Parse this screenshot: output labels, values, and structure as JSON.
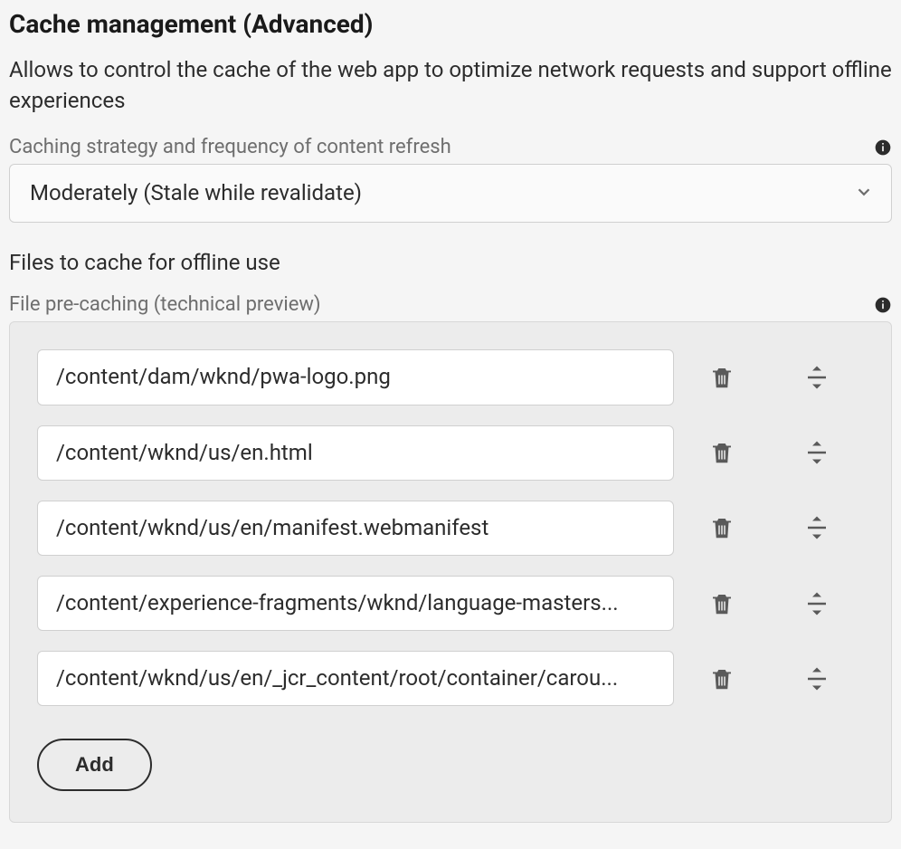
{
  "title": "Cache management (Advanced)",
  "description": "Allows to control the cache of the web app to optimize network requests and support offline experiences",
  "strategy": {
    "label": "Caching strategy and frequency of content refresh",
    "selected": "Moderately (Stale while revalidate)"
  },
  "files_section": {
    "heading": "Files to cache for offline use",
    "label": "File pre-caching (technical preview)",
    "items": [
      "/content/dam/wknd/pwa-logo.png",
      "/content/wknd/us/en.html",
      "/content/wknd/us/en/manifest.webmanifest",
      "/content/experience-fragments/wknd/language-masters...",
      "/content/wknd/us/en/_jcr_content/root/container/carou..."
    ],
    "add_label": "Add"
  },
  "colors": {
    "background": "#f5f5f5",
    "box_background": "#ececec",
    "input_background": "#ffffff",
    "border": "#d0d0d0",
    "text_primary": "#2c2c2c",
    "text_secondary": "#6e6e6e",
    "icon": "#5a5a5a"
  }
}
